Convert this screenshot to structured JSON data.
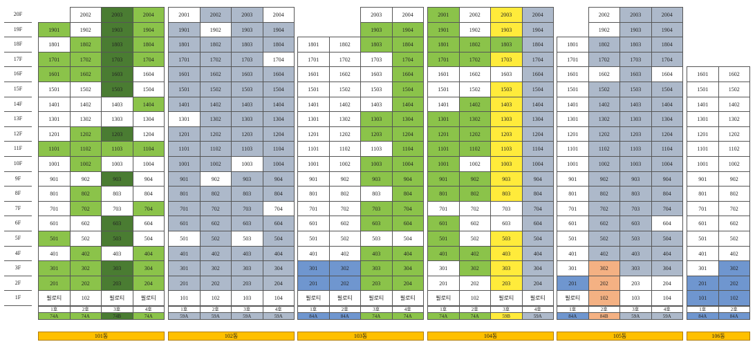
{
  "floors": [
    "20F",
    "19F",
    "18F",
    "17F",
    "16F",
    "15F",
    "14F",
    "13F",
    "12F",
    "11F",
    "10F",
    "9F",
    "8F",
    "7F",
    "6F",
    "5F",
    "4F",
    "3F",
    "2F",
    "1F"
  ],
  "buildings": [
    {
      "name": "101동",
      "lines": [
        "1호",
        "2호",
        "3호",
        "4호"
      ],
      "types": [
        "74A",
        "74A",
        "74B",
        "74A"
      ],
      "type_colors": [
        "g",
        "g",
        "dg",
        "g"
      ],
      "rows": [
        [
          null,
          "w:2002",
          "dg:2003",
          "g:2004"
        ],
        [
          "g:1901",
          "w:1902",
          "dg:1903",
          "g:1904"
        ],
        [
          "w:1801",
          "g:1802",
          "dg:1803",
          "g:1804"
        ],
        [
          "g:1701",
          "g:1702",
          "dg:1703",
          "g:1704"
        ],
        [
          "g:1601",
          "g:1602",
          "dg:1603",
          "w:1604"
        ],
        [
          "w:1501",
          "w:1502",
          "dg:1503",
          "w:1504"
        ],
        [
          "w:1401",
          "w:1402",
          "w:1403",
          "g:1404"
        ],
        [
          "w:1301",
          "w:1302",
          "w:1303",
          "w:1304"
        ],
        [
          "w:1201",
          "g:1202",
          "dg:1203",
          "w:1204"
        ],
        [
          "g:1101",
          "g:1102",
          "g:1103",
          "g:1104"
        ],
        [
          "w:1001",
          "g:1002",
          "w:1003",
          "w:1004"
        ],
        [
          "w:901",
          "w:902",
          "dg:903",
          "w:904"
        ],
        [
          "w:801",
          "g:802",
          "w:803",
          "w:804"
        ],
        [
          "w:701",
          "g:702",
          "w:703",
          "g:704"
        ],
        [
          "w:601",
          "w:602",
          "dg:603",
          "w:604"
        ],
        [
          "g:501",
          "w:502",
          "dg:503",
          "w:504"
        ],
        [
          "w:401",
          "g:402",
          "w:403",
          "g:404"
        ],
        [
          "g:301",
          "g:302",
          "dg:303",
          "g:304"
        ],
        [
          "g:201",
          "g:202",
          "dg:203",
          "g:204"
        ],
        [
          "w:필로티",
          "w:102",
          "w:필로티",
          "w:필로티"
        ]
      ]
    },
    {
      "name": "102동",
      "lines": [
        "1호",
        "2호",
        "3호",
        "4호"
      ],
      "types": [
        "59A",
        "59A",
        "59A",
        "59A"
      ],
      "type_colors": [
        "b",
        "b",
        "b",
        "b"
      ],
      "rows": [
        [
          "w:2001",
          "b:2002",
          "b:2003",
          "w:2004"
        ],
        [
          "b:1901",
          "w:1902",
          "b:1903",
          "b:1904"
        ],
        [
          "b:1801",
          "b:1802",
          "b:1803",
          "b:1804"
        ],
        [
          "b:1701",
          "b:1702",
          "b:1703",
          "w:1704"
        ],
        [
          "b:1601",
          "b:1602",
          "b:1603",
          "b:1604"
        ],
        [
          "b:1501",
          "b:1502",
          "b:1503",
          "b:1504"
        ],
        [
          "b:1401",
          "b:1402",
          "b:1403",
          "b:1404"
        ],
        [
          "w:1301",
          "b:1302",
          "b:1303",
          "b:1304"
        ],
        [
          "b:1201",
          "b:1202",
          "b:1203",
          "b:1204"
        ],
        [
          "b:1101",
          "b:1102",
          "b:1103",
          "b:1104"
        ],
        [
          "b:1001",
          "b:1002",
          "w:1003",
          "b:1004"
        ],
        [
          "b:901",
          "w:902",
          "b:903",
          "b:904"
        ],
        [
          "b:801",
          "b:802",
          "b:803",
          "b:804"
        ],
        [
          "b:701",
          "b:702",
          "b:703",
          "w:704"
        ],
        [
          "b:601",
          "b:602",
          "b:603",
          "b:604"
        ],
        [
          "w:501",
          "b:502",
          "w:503",
          "b:504"
        ],
        [
          "b:401",
          "b:402",
          "b:403",
          "b:404"
        ],
        [
          "b:301",
          "b:302",
          "b:303",
          "b:304"
        ],
        [
          "b:201",
          "b:202",
          "b:203",
          "b:204"
        ],
        [
          "w:101",
          "w:102",
          "w:103",
          "w:104"
        ]
      ]
    },
    {
      "name": "103동",
      "lines": [
        "1호",
        "2호",
        "3호",
        "4호"
      ],
      "types": [
        "84A",
        "84A",
        "74A",
        "74A"
      ],
      "type_colors": [
        "bl",
        "bl",
        "g",
        "g"
      ],
      "rows": [
        [
          null,
          null,
          "w:2003",
          "w:2004"
        ],
        [
          null,
          null,
          "g:1903",
          "g:1904"
        ],
        [
          "w:1801",
          "w:1802",
          "g:1803",
          "g:1804"
        ],
        [
          "w:1701",
          "w:1702",
          "w:1703",
          "g:1704"
        ],
        [
          "w:1601",
          "w:1602",
          "w:1603",
          "g:1604"
        ],
        [
          "w:1501",
          "w:1502",
          "w:1503",
          "g:1504"
        ],
        [
          "w:1401",
          "w:1402",
          "w:1403",
          "g:1404"
        ],
        [
          "w:1301",
          "w:1302",
          "g:1303",
          "g:1304"
        ],
        [
          "w:1201",
          "w:1202",
          "g:1203",
          "g:1204"
        ],
        [
          "w:1101",
          "w:1102",
          "w:1103",
          "g:1104"
        ],
        [
          "w:1001",
          "w:1002",
          "g:1003",
          "g:1004"
        ],
        [
          "w:901",
          "w:902",
          "g:903",
          "g:904"
        ],
        [
          "w:801",
          "w:802",
          "w:803",
          "g:804"
        ],
        [
          "w:701",
          "w:702",
          "g:703",
          "g:704"
        ],
        [
          "w:601",
          "w:602",
          "g:603",
          "g:604"
        ],
        [
          "w:501",
          "w:502",
          "w:503",
          "w:504"
        ],
        [
          "w:401",
          "w:402",
          "g:403",
          "g:404"
        ],
        [
          "bl:301",
          "bl:302",
          "g:303",
          "g:304"
        ],
        [
          "bl:201",
          "bl:202",
          "g:203",
          "g:204"
        ],
        [
          "w:필로티",
          "w:필로티",
          "w:필로티",
          "w:필로티"
        ]
      ]
    },
    {
      "name": "104동",
      "lines": [
        "1호",
        "2호",
        "3호",
        "4호"
      ],
      "types": [
        "74A",
        "74A",
        "59B",
        "59A"
      ],
      "type_colors": [
        "g",
        "g",
        "y",
        "b"
      ],
      "rows": [
        [
          "g:2001",
          "w:2002",
          "y:2003",
          "b:2004"
        ],
        [
          "g:1901",
          "w:1902",
          "y:1903",
          "b:1904"
        ],
        [
          "g:1801",
          "g:1802",
          "g:1803",
          "b:1804"
        ],
        [
          "g:1701",
          "g:1702",
          "y:1703",
          "b:1704"
        ],
        [
          "w:1601",
          "w:1602",
          "w:1603",
          "b:1604"
        ],
        [
          "w:1501",
          "w:1502",
          "y:1503",
          "b:1504"
        ],
        [
          "w:1401",
          "g:1402",
          "y:1403",
          "b:1404"
        ],
        [
          "g:1301",
          "g:1302",
          "y:1303",
          "b:1304"
        ],
        [
          "g:1201",
          "g:1202",
          "y:1203",
          "b:1204"
        ],
        [
          "g:1101",
          "g:1102",
          "y:1103",
          "b:1104"
        ],
        [
          "g:1001",
          "w:1002",
          "y:1003",
          "b:1004"
        ],
        [
          "g:901",
          "g:902",
          "y:903",
          "b:904"
        ],
        [
          "g:801",
          "g:802",
          "y:803",
          "b:804"
        ],
        [
          "w:701",
          "w:702",
          "w:703",
          "b:704"
        ],
        [
          "g:601",
          "w:602",
          "w:603",
          "b:604"
        ],
        [
          "g:501",
          "w:502",
          "y:503",
          "b:504"
        ],
        [
          "g:401",
          "g:402",
          "y:403",
          "b:404"
        ],
        [
          "w:301",
          "g:302",
          "y:303",
          "b:304"
        ],
        [
          "w:201",
          "w:202",
          "y:203",
          "b:204"
        ],
        [
          "w:필로티",
          "w:102",
          "w:필로티",
          "w:필로티"
        ]
      ]
    },
    {
      "name": "105동",
      "lines": [
        "1호",
        "2호",
        "3호",
        "4호"
      ],
      "types": [
        "84A",
        "84B",
        "59A",
        "59A"
      ],
      "type_colors": [
        "bl",
        "o",
        "b",
        "b"
      ],
      "rows": [
        [
          null,
          "w:2002",
          "b:2003",
          "b:2004"
        ],
        [
          null,
          "w:1902",
          "b:1903",
          "b:1904"
        ],
        [
          "w:1801",
          "b:1802",
          "b:1803",
          "b:1804"
        ],
        [
          "w:1701",
          "b:1702",
          "b:1703",
          "b:1704"
        ],
        [
          "w:1601",
          "w:1602",
          "b:1603",
          "w:1604"
        ],
        [
          "w:1501",
          "b:1502",
          "b:1503",
          "b:1504"
        ],
        [
          "w:1401",
          "b:1402",
          "b:1403",
          "b:1404"
        ],
        [
          "w:1301",
          "b:1302",
          "b:1303",
          "b:1304"
        ],
        [
          "w:1201",
          "b:1202",
          "b:1203",
          "b:1204"
        ],
        [
          "w:1101",
          "b:1102",
          "b:1103",
          "b:1104"
        ],
        [
          "w:1001",
          "b:1002",
          "b:1003",
          "b:1004"
        ],
        [
          "w:901",
          "b:902",
          "b:903",
          "b:904"
        ],
        [
          "w:801",
          "b:802",
          "b:803",
          "b:804"
        ],
        [
          "w:701",
          "b:702",
          "b:703",
          "b:704"
        ],
        [
          "w:601",
          "b:602",
          "b:603",
          "w:604"
        ],
        [
          "w:501",
          "b:502",
          "b:503",
          "b:504"
        ],
        [
          "w:401",
          "b:402",
          "b:403",
          "b:404"
        ],
        [
          "w:301",
          "o:302",
          "b:303",
          "b:304"
        ],
        [
          "bl:201",
          "o:202",
          "w:203",
          "w:204"
        ],
        [
          "w:필로티",
          "o:102",
          "w:103",
          "w:104"
        ]
      ]
    },
    {
      "name": "106동",
      "lines": [
        "1호",
        "2호"
      ],
      "types": [
        "84A",
        "84A"
      ],
      "type_colors": [
        "bl",
        "bl"
      ],
      "rows": [
        [
          null,
          null
        ],
        [
          null,
          null
        ],
        [
          null,
          null
        ],
        [
          null,
          null
        ],
        [
          "w:1601",
          "w:1602"
        ],
        [
          "w:1501",
          "w:1502"
        ],
        [
          "w:1401",
          "w:1402"
        ],
        [
          "w:1301",
          "w:1302"
        ],
        [
          "w:1201",
          "w:1202"
        ],
        [
          "w:1101",
          "w:1102"
        ],
        [
          "w:1001",
          "w:1002"
        ],
        [
          "w:901",
          "w:902"
        ],
        [
          "w:801",
          "w:802"
        ],
        [
          "w:701",
          "w:702"
        ],
        [
          "w:601",
          "w:602"
        ],
        [
          "w:501",
          "w:502"
        ],
        [
          "w:401",
          "w:402"
        ],
        [
          "w:301",
          "bl:302"
        ],
        [
          "bl:201",
          "bl:202"
        ],
        [
          "bl:101",
          "bl:102"
        ]
      ]
    }
  ]
}
